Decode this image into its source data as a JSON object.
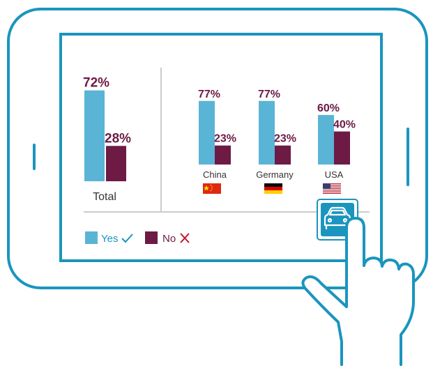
{
  "colors": {
    "frame": "#1a95be",
    "yes": "#5ab4d6",
    "no": "#6d1a45",
    "divider": "#999999",
    "icon_bg": "#1a95be"
  },
  "icons": {
    "device": "tablet-frame",
    "hand": "pointing-hand-icon",
    "car": "car-icon",
    "yes_mark": "check-icon",
    "no_mark": "cross-icon"
  },
  "chart_data": {
    "type": "bar",
    "total": {
      "label": "Total",
      "values": {
        "yes": 72,
        "no": 28
      },
      "labels": {
        "yes": "72%",
        "no": "28%"
      }
    },
    "categories": [
      "China",
      "Germany",
      "USA"
    ],
    "series": [
      {
        "name": "Yes",
        "values": [
          77,
          77,
          60
        ],
        "labels": [
          "77%",
          "77%",
          "60%"
        ]
      },
      {
        "name": "No",
        "values": [
          23,
          23,
          40
        ],
        "labels": [
          "23%",
          "23%",
          "40%"
        ]
      }
    ],
    "flags": [
      "china-flag",
      "germany-flag",
      "usa-flag"
    ],
    "ylim": [
      0,
      100
    ],
    "legend": {
      "position": "bottom-left",
      "yes_label": "Yes",
      "no_label": "No"
    }
  }
}
